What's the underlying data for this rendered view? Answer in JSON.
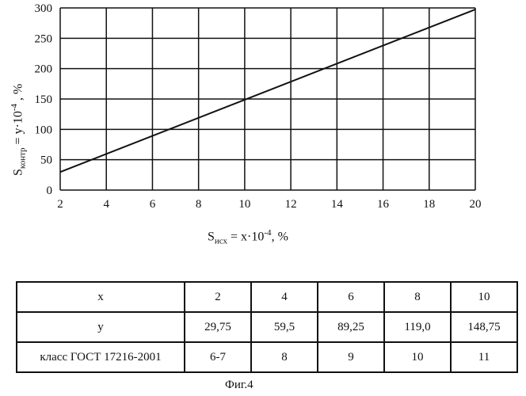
{
  "chart_data": {
    "type": "line",
    "title": "",
    "xlabel": {
      "base": "S",
      "sub": "исх",
      "rest": " = x·10",
      "sup": "-4",
      "tail": ", %"
    },
    "ylabel": {
      "base": "S",
      "sub": "контр",
      "rest": " = y·10",
      "sup": "-4",
      "tail": " , %"
    },
    "xlim": [
      2,
      20
    ],
    "ylim": [
      0,
      300
    ],
    "x_ticks": [
      "2",
      "4",
      "6",
      "8",
      "10",
      "12",
      "14",
      "16",
      "18",
      "20"
    ],
    "y_ticks": [
      "0",
      "50",
      "100",
      "150",
      "200",
      "250",
      "300"
    ],
    "grid": true,
    "series": [
      {
        "x": [
          2,
          20
        ],
        "y": [
          29.75,
          297.5
        ]
      }
    ]
  },
  "table": {
    "rows": [
      {
        "header": "x",
        "values": [
          "2",
          "4",
          "6",
          "8",
          "10"
        ]
      },
      {
        "header": "y",
        "values": [
          "29,75",
          "59,5",
          "89,25",
          "119,0",
          "148,75"
        ]
      },
      {
        "header": "класс ГОСТ 17216-2001",
        "values": [
          "6-7",
          "8",
          "9",
          "10",
          "11"
        ]
      }
    ]
  },
  "caption": "Фиг.4"
}
